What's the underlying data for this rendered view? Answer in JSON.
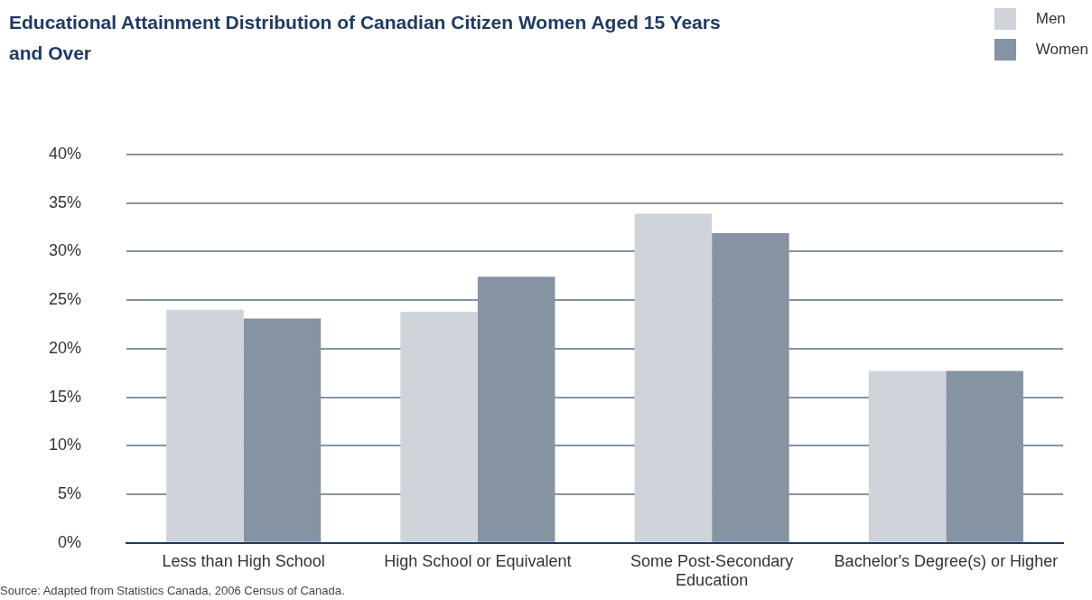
{
  "chart_data": {
    "type": "bar",
    "title": "Educational Attainment Distribution of Canadian Citizen Women Aged 15 Years and Over",
    "categories": [
      "Less than High School",
      "High School or Equivalent",
      "Some Post-Secondary Education",
      "Bachelor's Degree(s) or Higher"
    ],
    "series": [
      {
        "name": "Men",
        "color": "#cfd4db",
        "values": [
          24.0,
          23.8,
          33.9,
          17.7
        ]
      },
      {
        "name": "Women",
        "color": "#8693a3",
        "values": [
          23.1,
          27.4,
          31.9,
          17.7
        ]
      }
    ],
    "ylim": [
      0,
      40
    ],
    "yticks": [
      {
        "value": 0,
        "label": "0%"
      },
      {
        "value": 5,
        "label": "5%"
      },
      {
        "value": 10,
        "label": "10%"
      },
      {
        "value": 15,
        "label": "15%"
      },
      {
        "value": 20,
        "label": "20%"
      },
      {
        "value": 25,
        "label": "25%"
      },
      {
        "value": 30,
        "label": "30%"
      },
      {
        "value": 35,
        "label": "35%"
      },
      {
        "value": 40,
        "label": "40%"
      }
    ],
    "grid": "y",
    "legend": "top right",
    "annotations": [
      "Source:  Adapted from Statistics Canada, 2006 Census of Canada."
    ]
  }
}
